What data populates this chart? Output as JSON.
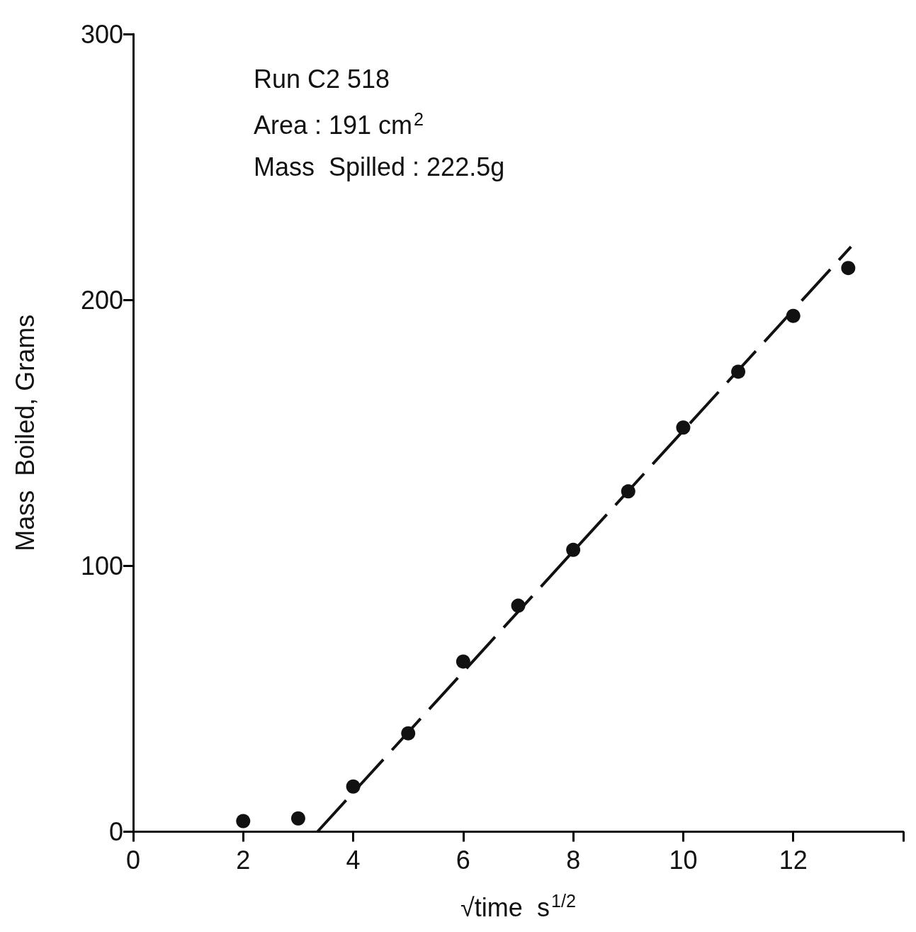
{
  "chart_data": {
    "type": "scatter",
    "xlabel": "√time  s$^{1/2}$",
    "ylabel": "Mass  Boiled, Grams",
    "annotations": [
      "Run C2 518",
      "Area : 191 cm$^{2}$",
      "Mass  Spilled : 222.5g"
    ],
    "x": [
      2,
      3,
      4,
      5,
      6,
      7,
      8,
      9,
      10,
      11,
      12,
      13
    ],
    "series": [
      {
        "color": "#111111",
        "values": [
          4,
          5,
          17,
          37,
          64,
          85,
          106,
          128,
          152,
          173,
          194,
          212
        ],
        "marker": "circle"
      },
      {
        "type": "line",
        "color": "#111111",
        "x": [
          3.35,
          13.05
        ],
        "values": [
          0,
          220
        ],
        "line_style": "dashed",
        "marker": "none"
      }
    ],
    "xlim": [
      0,
      14
    ],
    "xticks": [
      0,
      2,
      4,
      6,
      8,
      10,
      12
    ],
    "ylim": [
      0,
      300
    ],
    "yticks": [
      0,
      100,
      200,
      300
    ],
    "grid": false
  }
}
